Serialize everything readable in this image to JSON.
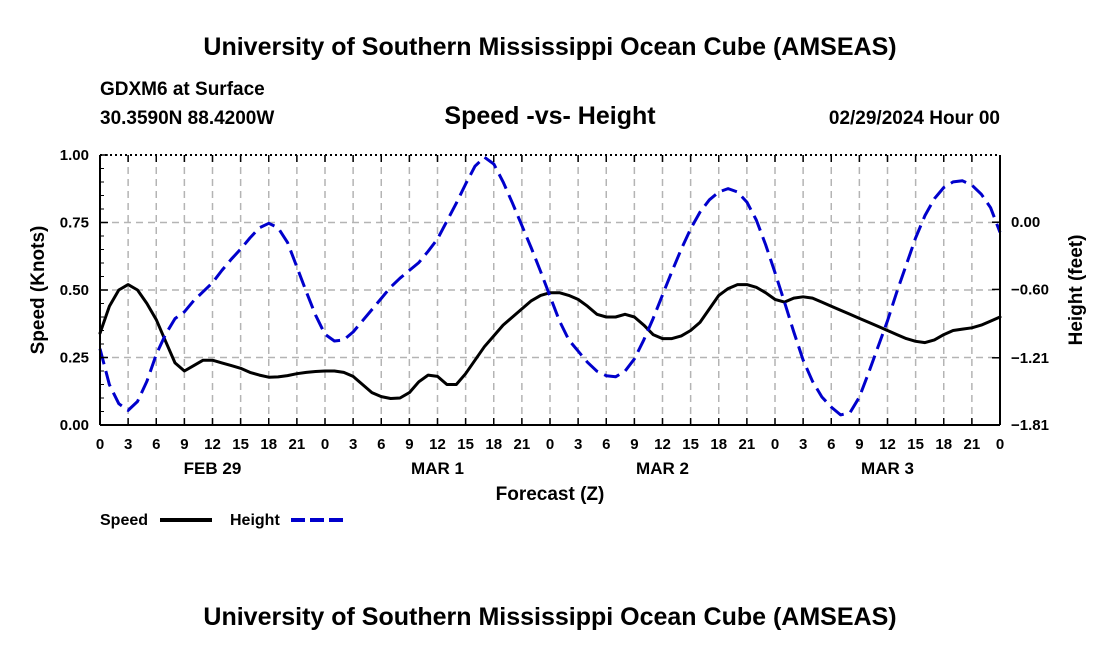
{
  "header": {
    "title_top": "University of Southern Mississippi Ocean Cube (AMSEAS)",
    "title_bottom": "University of Southern Mississippi Ocean Cube (AMSEAS)",
    "model_line": "GDXM6 at Surface",
    "location_line": "30.3590N  88.4200W",
    "date_line": "02/29/2024 Hour 00"
  },
  "chart_data": {
    "type": "line",
    "title": "Speed -vs- Height",
    "xlabel": "Forecast (Z)",
    "ylabel_left": "Speed (Knots)",
    "ylabel_right": "Height (feet)",
    "x_hours_range": [
      0,
      96
    ],
    "ylim_left": [
      0,
      1.0
    ],
    "ylim_right": [
      -1.81,
      0.6
    ],
    "grid": true,
    "x_tick_labels": [
      "0",
      "3",
      "6",
      "9",
      "12",
      "15",
      "18",
      "21",
      "0",
      "3",
      "6",
      "9",
      "12",
      "15",
      "18",
      "21",
      "0",
      "3",
      "6",
      "9",
      "12",
      "15",
      "18",
      "21",
      "0",
      "3",
      "6",
      "9",
      "12",
      "15",
      "18",
      "21",
      "0"
    ],
    "day_labels": [
      {
        "label": "FEB 29",
        "hour": 12
      },
      {
        "label": "MAR 1",
        "hour": 36
      },
      {
        "label": "MAR 2",
        "hour": 60
      },
      {
        "label": "MAR 3",
        "hour": 84
      }
    ],
    "y_left_ticks": [
      "0.00",
      "0.25",
      "0.50",
      "0.75",
      "1.00"
    ],
    "y_left_tick_values": [
      0,
      0.25,
      0.5,
      0.75,
      1.0
    ],
    "y_right_ticks": [
      "0.00",
      "−0.60",
      "−1.21",
      "−1.81"
    ],
    "y_right_tick_values": [
      0.0,
      -0.6,
      -1.21,
      -1.81
    ],
    "legend_position": "bottom-left",
    "series": [
      {
        "name": "Speed",
        "axis": "left",
        "color": "#000000",
        "style": "solid",
        "points": [
          [
            0,
            0.34
          ],
          [
            1,
            0.44
          ],
          [
            2,
            0.5
          ],
          [
            3,
            0.52
          ],
          [
            4,
            0.5
          ],
          [
            5,
            0.45
          ],
          [
            6,
            0.39
          ],
          [
            7,
            0.31
          ],
          [
            8,
            0.23
          ],
          [
            9,
            0.2
          ],
          [
            10,
            0.22
          ],
          [
            11,
            0.24
          ],
          [
            12,
            0.24
          ],
          [
            13,
            0.23
          ],
          [
            14,
            0.22
          ],
          [
            15,
            0.21
          ],
          [
            16,
            0.195
          ],
          [
            17,
            0.185
          ],
          [
            18,
            0.177
          ],
          [
            19,
            0.178
          ],
          [
            20,
            0.183
          ],
          [
            21,
            0.19
          ],
          [
            22,
            0.195
          ],
          [
            23,
            0.198
          ],
          [
            24,
            0.2
          ],
          [
            25,
            0.2
          ],
          [
            26,
            0.195
          ],
          [
            27,
            0.18
          ],
          [
            28,
            0.15
          ],
          [
            29,
            0.12
          ],
          [
            30,
            0.105
          ],
          [
            31,
            0.098
          ],
          [
            32,
            0.1
          ],
          [
            33,
            0.12
          ],
          [
            34,
            0.16
          ],
          [
            35,
            0.185
          ],
          [
            36,
            0.18
          ],
          [
            37,
            0.15
          ],
          [
            38,
            0.15
          ],
          [
            39,
            0.19
          ],
          [
            40,
            0.24
          ],
          [
            41,
            0.29
          ],
          [
            42,
            0.33
          ],
          [
            43,
            0.37
          ],
          [
            44,
            0.4
          ],
          [
            45,
            0.43
          ],
          [
            46,
            0.46
          ],
          [
            47,
            0.48
          ],
          [
            48,
            0.49
          ],
          [
            49,
            0.49
          ],
          [
            50,
            0.48
          ],
          [
            51,
            0.465
          ],
          [
            52,
            0.44
          ],
          [
            53,
            0.41
          ],
          [
            54,
            0.4
          ],
          [
            55,
            0.4
          ],
          [
            56,
            0.41
          ],
          [
            57,
            0.4
          ],
          [
            58,
            0.37
          ],
          [
            59,
            0.335
          ],
          [
            60,
            0.32
          ],
          [
            61,
            0.32
          ],
          [
            62,
            0.33
          ],
          [
            63,
            0.35
          ],
          [
            64,
            0.38
          ],
          [
            65,
            0.43
          ],
          [
            66,
            0.48
          ],
          [
            67,
            0.505
          ],
          [
            68,
            0.52
          ],
          [
            69,
            0.52
          ],
          [
            70,
            0.51
          ],
          [
            71,
            0.49
          ],
          [
            72,
            0.465
          ],
          [
            73,
            0.455
          ],
          [
            74,
            0.47
          ],
          [
            75,
            0.475
          ],
          [
            76,
            0.47
          ],
          [
            77,
            0.455
          ],
          [
            78,
            0.44
          ],
          [
            79,
            0.425
          ],
          [
            80,
            0.41
          ],
          [
            81,
            0.395
          ],
          [
            82,
            0.38
          ],
          [
            83,
            0.365
          ],
          [
            84,
            0.35
          ],
          [
            85,
            0.335
          ],
          [
            86,
            0.32
          ],
          [
            87,
            0.31
          ],
          [
            88,
            0.305
          ],
          [
            89,
            0.315
          ],
          [
            90,
            0.335
          ],
          [
            91,
            0.35
          ],
          [
            92,
            0.355
          ],
          [
            93,
            0.36
          ],
          [
            94,
            0.37
          ],
          [
            95,
            0.385
          ],
          [
            96,
            0.4
          ]
        ]
      },
      {
        "name": "Height",
        "axis": "right",
        "color": "#0000cc",
        "style": "dashed",
        "points": [
          [
            0,
            -1.13
          ],
          [
            1,
            -1.45
          ],
          [
            2,
            -1.62
          ],
          [
            3,
            -1.68
          ],
          [
            4,
            -1.6
          ],
          [
            5,
            -1.42
          ],
          [
            6,
            -1.18
          ],
          [
            7,
            -1.0
          ],
          [
            8,
            -0.86
          ],
          [
            9,
            -0.8
          ],
          [
            10,
            -0.7
          ],
          [
            11,
            -0.62
          ],
          [
            12,
            -0.54
          ],
          [
            13,
            -0.43
          ],
          [
            14,
            -0.33
          ],
          [
            15,
            -0.24
          ],
          [
            16,
            -0.14
          ],
          [
            17,
            -0.05
          ],
          [
            18,
            -0.01
          ],
          [
            19,
            -0.05
          ],
          [
            20,
            -0.18
          ],
          [
            21,
            -0.4
          ],
          [
            22,
            -0.62
          ],
          [
            23,
            -0.83
          ],
          [
            24,
            -1.0
          ],
          [
            25,
            -1.06
          ],
          [
            26,
            -1.05
          ],
          [
            27,
            -0.98
          ],
          [
            28,
            -0.88
          ],
          [
            29,
            -0.78
          ],
          [
            30,
            -0.68
          ],
          [
            31,
            -0.58
          ],
          [
            32,
            -0.5
          ],
          [
            33,
            -0.43
          ],
          [
            34,
            -0.36
          ],
          [
            35,
            -0.26
          ],
          [
            36,
            -0.15
          ],
          [
            37,
            0.01
          ],
          [
            38,
            0.17
          ],
          [
            39,
            0.34
          ],
          [
            40,
            0.5
          ],
          [
            41,
            0.58
          ],
          [
            42,
            0.52
          ],
          [
            43,
            0.36
          ],
          [
            44,
            0.17
          ],
          [
            45,
            -0.03
          ],
          [
            46,
            -0.23
          ],
          [
            47,
            -0.44
          ],
          [
            48,
            -0.66
          ],
          [
            49,
            -0.88
          ],
          [
            50,
            -1.05
          ],
          [
            51,
            -1.15
          ],
          [
            52,
            -1.25
          ],
          [
            53,
            -1.33
          ],
          [
            54,
            -1.37
          ],
          [
            55,
            -1.38
          ],
          [
            56,
            -1.33
          ],
          [
            57,
            -1.22
          ],
          [
            58,
            -1.05
          ],
          [
            59,
            -0.86
          ],
          [
            60,
            -0.65
          ],
          [
            61,
            -0.44
          ],
          [
            62,
            -0.24
          ],
          [
            63,
            -0.06
          ],
          [
            64,
            0.09
          ],
          [
            65,
            0.2
          ],
          [
            66,
            0.27
          ],
          [
            67,
            0.3
          ],
          [
            68,
            0.27
          ],
          [
            69,
            0.18
          ],
          [
            70,
            0.02
          ],
          [
            71,
            -0.2
          ],
          [
            72,
            -0.45
          ],
          [
            73,
            -0.71
          ],
          [
            74,
            -0.98
          ],
          [
            75,
            -1.23
          ],
          [
            76,
            -1.42
          ],
          [
            77,
            -1.56
          ],
          [
            78,
            -1.65
          ],
          [
            79,
            -1.72
          ],
          [
            80,
            -1.7
          ],
          [
            81,
            -1.56
          ],
          [
            82,
            -1.34
          ],
          [
            83,
            -1.11
          ],
          [
            84,
            -0.88
          ],
          [
            85,
            -0.62
          ],
          [
            86,
            -0.38
          ],
          [
            87,
            -0.14
          ],
          [
            88,
            0.06
          ],
          [
            89,
            0.21
          ],
          [
            90,
            0.31
          ],
          [
            91,
            0.36
          ],
          [
            92,
            0.37
          ],
          [
            93,
            0.33
          ],
          [
            94,
            0.25
          ],
          [
            95,
            0.13
          ],
          [
            96,
            -0.09
          ]
        ]
      }
    ]
  }
}
